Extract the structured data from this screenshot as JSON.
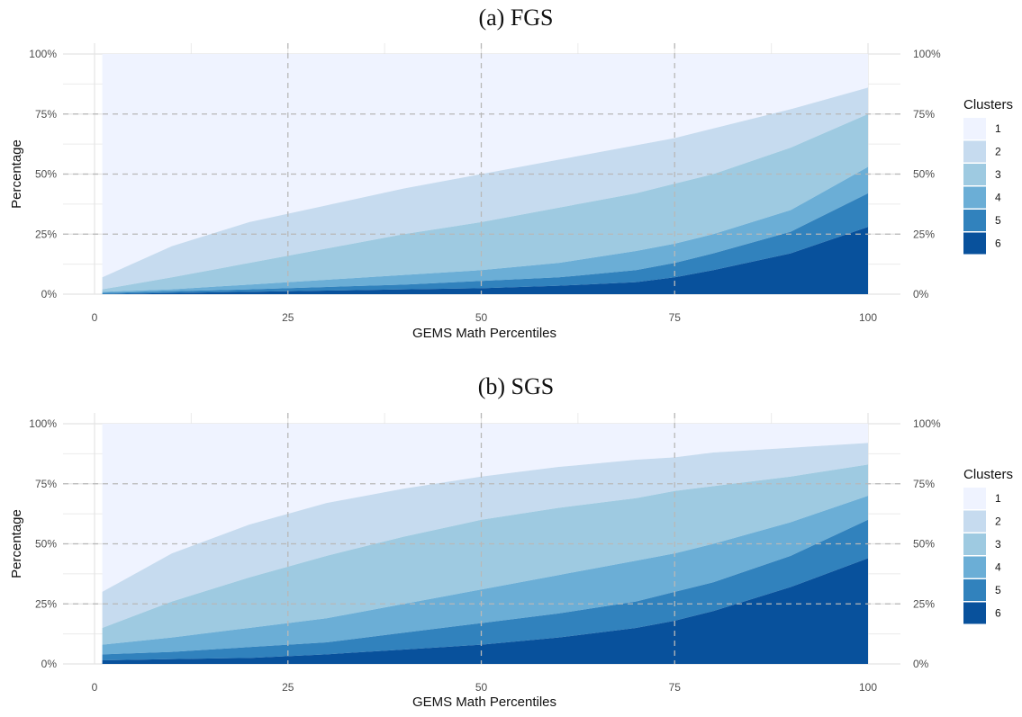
{
  "chart_data": [
    {
      "type": "area",
      "stacked": true,
      "title": "(a) FGS",
      "xlabel": "GEMS Math Percentiles",
      "ylabel": "Percentage",
      "xlim": [
        0,
        100
      ],
      "ylim": [
        0,
        100
      ],
      "x_ticks": [
        "0",
        "25",
        "50",
        "75",
        "100"
      ],
      "y_ticks": [
        "0%",
        "25%",
        "50%",
        "75%",
        "100%"
      ],
      "grid": true,
      "secondary_y_axis": true,
      "legend": {
        "title": "Clusters",
        "position": "right"
      },
      "x": [
        1,
        10,
        20,
        30,
        40,
        50,
        60,
        70,
        75,
        80,
        90,
        100
      ],
      "series": [
        {
          "name": "1",
          "color": "#eff3ff",
          "upper": [
            100,
            100,
            100,
            100,
            100,
            100,
            100,
            100,
            100,
            100,
            100,
            100
          ]
        },
        {
          "name": "2",
          "color": "#c6dbef",
          "upper": [
            7,
            20,
            30,
            37,
            44,
            50,
            56,
            62,
            65,
            69,
            77,
            86
          ]
        },
        {
          "name": "3",
          "color": "#9ecae1",
          "upper": [
            2,
            7,
            13,
            19,
            25,
            30,
            36,
            42,
            46,
            50,
            61,
            75
          ]
        },
        {
          "name": "4",
          "color": "#6baed6",
          "upper": [
            1,
            2,
            4,
            6,
            8,
            10,
            13,
            18,
            21,
            25,
            35,
            53
          ]
        },
        {
          "name": "5",
          "color": "#3182bd",
          "upper": [
            0.5,
            1.2,
            2,
            3,
            4,
            5.5,
            7,
            10,
            13,
            17,
            26,
            42
          ]
        },
        {
          "name": "6",
          "color": "#08519c",
          "upper": [
            0,
            0.5,
            1,
            1.5,
            2,
            2.5,
            3.5,
            5,
            7,
            10,
            17,
            28
          ]
        }
      ]
    },
    {
      "type": "area",
      "stacked": true,
      "title": "(b) SGS",
      "xlabel": "GEMS Math Percentiles",
      "ylabel": "Percentage",
      "xlim": [
        0,
        100
      ],
      "ylim": [
        0,
        100
      ],
      "x_ticks": [
        "0",
        "25",
        "50",
        "75",
        "100"
      ],
      "y_ticks": [
        "0%",
        "25%",
        "50%",
        "75%",
        "100%"
      ],
      "grid": true,
      "secondary_y_axis": true,
      "legend": {
        "title": "Clusters",
        "position": "right"
      },
      "x": [
        1,
        10,
        20,
        30,
        40,
        50,
        60,
        70,
        75,
        80,
        90,
        100
      ],
      "series": [
        {
          "name": "1",
          "color": "#eff3ff",
          "upper": [
            100,
            100,
            100,
            100,
            100,
            100,
            100,
            100,
            100,
            100,
            100,
            100
          ]
        },
        {
          "name": "2",
          "color": "#c6dbef",
          "upper": [
            30,
            46,
            58,
            67,
            73,
            78,
            82,
            85,
            86,
            88,
            90,
            92
          ]
        },
        {
          "name": "3",
          "color": "#9ecae1",
          "upper": [
            15,
            26,
            36,
            45,
            53,
            60,
            65,
            69,
            72,
            74,
            78,
            83
          ]
        },
        {
          "name": "4",
          "color": "#6baed6",
          "upper": [
            8,
            11,
            15,
            19,
            25,
            31,
            37,
            43,
            46,
            50,
            59,
            70
          ]
        },
        {
          "name": "5",
          "color": "#3182bd",
          "upper": [
            4,
            5,
            7,
            9,
            13,
            17,
            21,
            26,
            30,
            34,
            45,
            60
          ]
        },
        {
          "name": "6",
          "color": "#08519c",
          "upper": [
            1.5,
            2,
            2.5,
            4,
            6,
            8,
            11,
            15,
            18,
            22,
            32,
            44
          ]
        }
      ]
    }
  ]
}
